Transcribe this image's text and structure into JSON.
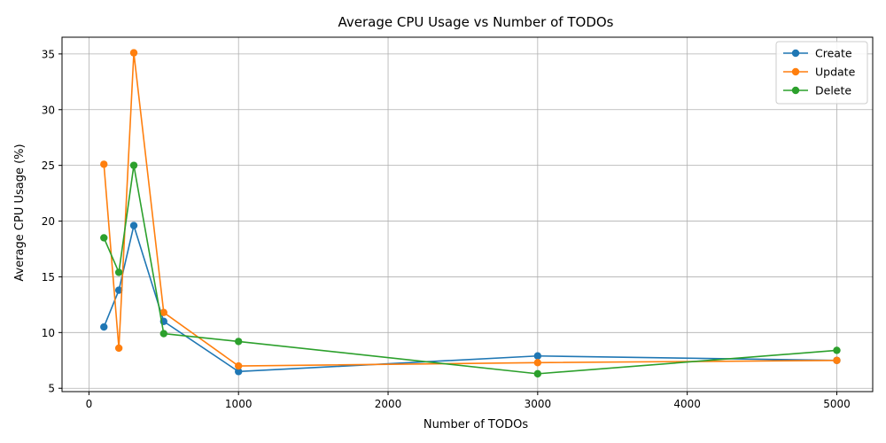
{
  "chart_data": {
    "type": "line",
    "title": "Average CPU Usage vs Number of TODOs",
    "xlabel": "Number of TODOs",
    "ylabel": "Average CPU Usage (%)",
    "xlim": [
      -180,
      5240
    ],
    "ylim": [
      4.7,
      36.5
    ],
    "xticks": [
      0,
      1000,
      2000,
      3000,
      4000,
      5000
    ],
    "yticks": [
      5,
      10,
      15,
      20,
      25,
      30,
      35
    ],
    "grid": true,
    "legend_position": "top-right",
    "x": [
      100,
      200,
      300,
      500,
      1000,
      3000,
      5000
    ],
    "series": [
      {
        "name": "Create",
        "color": "#1f77b4",
        "values": [
          10.5,
          13.8,
          19.6,
          11.0,
          6.5,
          7.9,
          7.5
        ]
      },
      {
        "name": "Update",
        "color": "#ff7f0e",
        "values": [
          25.1,
          8.6,
          35.1,
          11.8,
          7.0,
          7.3,
          7.5
        ]
      },
      {
        "name": "Delete",
        "color": "#2ca02c",
        "values": [
          18.5,
          15.4,
          25.0,
          9.9,
          9.2,
          6.3,
          8.4
        ]
      }
    ]
  }
}
